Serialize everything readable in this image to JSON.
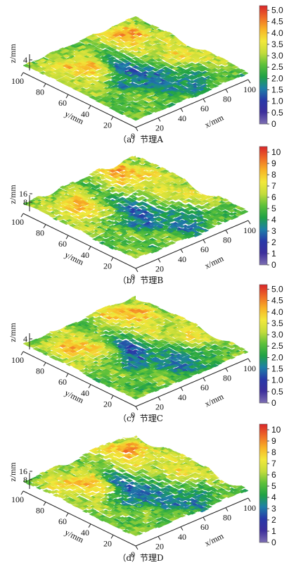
{
  "chart_data": [
    {
      "type": "surface3d",
      "caption": "（a）节理A",
      "x_axis": {
        "label": "x/mm",
        "ticks": [
          0,
          20,
          40,
          60,
          80,
          100
        ]
      },
      "y_axis": {
        "label": "y/mm",
        "ticks": [
          20,
          40,
          60,
          80,
          100
        ]
      },
      "z_axis": {
        "label": "z/mm",
        "ticks": [
          4
        ]
      },
      "colorbar": {
        "range": [
          0,
          5.2
        ],
        "ticks": [
          "0",
          "0.5",
          "1.0",
          "1.5",
          "2.0",
          "2.5",
          "3.0",
          "3.5",
          "4.0",
          "4.5",
          "5.0"
        ]
      }
    },
    {
      "type": "surface3d",
      "caption": "（b）节理B",
      "x_axis": {
        "label": "x/mm",
        "ticks": [
          0,
          20,
          40,
          60,
          80,
          100
        ]
      },
      "y_axis": {
        "label": "y/mm",
        "ticks": [
          20,
          40,
          60,
          80,
          100
        ]
      },
      "z_axis": {
        "label": "z/mm",
        "ticks": [
          8,
          16
        ]
      },
      "colorbar": {
        "range": [
          0,
          10.5
        ],
        "ticks": [
          "0",
          "1",
          "2",
          "3",
          "4",
          "5",
          "6",
          "7",
          "8",
          "9",
          "10"
        ]
      }
    },
    {
      "type": "surface3d",
      "caption": "（c）节理C",
      "x_axis": {
        "label": "x/mm",
        "ticks": [
          0,
          20,
          40,
          60,
          80,
          100
        ]
      },
      "y_axis": {
        "label": "y/mm",
        "ticks": [
          20,
          40,
          60,
          80,
          100
        ]
      },
      "z_axis": {
        "label": "z/mm",
        "ticks": [
          4
        ]
      },
      "colorbar": {
        "range": [
          0,
          5.2
        ],
        "ticks": [
          "0",
          "0.5",
          "1.0",
          "1.5",
          "2.0",
          "2.5",
          "3.0",
          "3.5",
          "4.0",
          "4.5",
          "5.0"
        ]
      }
    },
    {
      "type": "surface3d",
      "caption": "（d）节理D",
      "x_axis": {
        "label": "x/mm",
        "ticks": [
          0,
          20,
          40,
          60,
          80,
          100
        ]
      },
      "y_axis": {
        "label": "y/mm",
        "ticks": [
          20,
          40,
          60,
          80,
          100
        ]
      },
      "z_axis": {
        "label": "z/mm",
        "ticks": [
          8,
          16
        ]
      },
      "colorbar": {
        "range": [
          0,
          10.5
        ],
        "ticks": [
          "0",
          "1",
          "2",
          "3",
          "4",
          "5",
          "6",
          "7",
          "8",
          "9",
          "10"
        ]
      }
    }
  ],
  "colormap": [
    "#7e6fb2",
    "#3d2f9c",
    "#2838a8",
    "#1e7fa8",
    "#1fa246",
    "#5cc03a",
    "#c3dc3a",
    "#f2e83a",
    "#f8b326",
    "#ef6a26",
    "#d8262a"
  ]
}
